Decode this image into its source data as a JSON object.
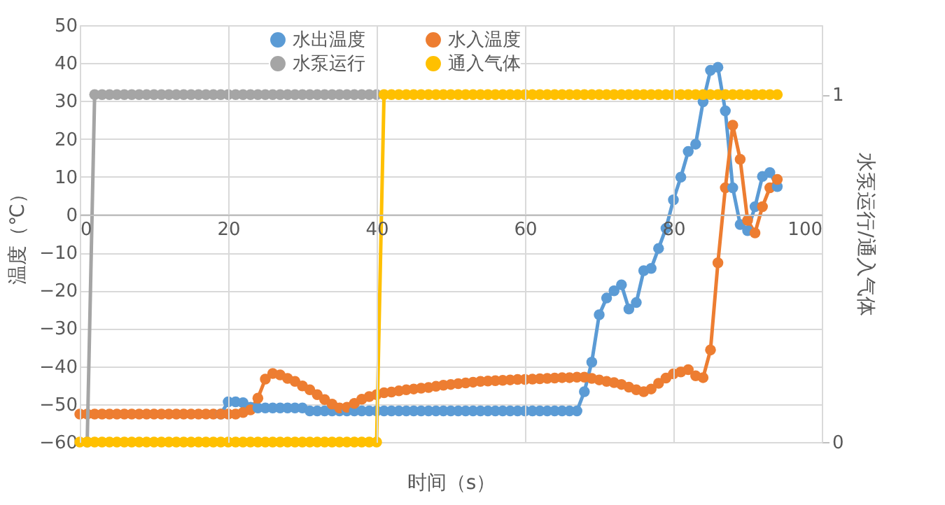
{
  "chart_data": {
    "type": "line",
    "xlabel": "时间（s）",
    "ylabel": "温度（℃）",
    "y2label": "水泵运行/通入气体",
    "x": [
      0,
      1,
      2,
      3,
      4,
      5,
      6,
      7,
      8,
      9,
      10,
      11,
      12,
      13,
      14,
      15,
      16,
      17,
      18,
      19,
      20,
      21,
      22,
      23,
      24,
      25,
      26,
      27,
      28,
      29,
      30,
      31,
      32,
      33,
      34,
      35,
      36,
      37,
      38,
      39,
      40,
      41,
      42,
      43,
      44,
      45,
      46,
      47,
      48,
      49,
      50,
      51,
      52,
      53,
      54,
      55,
      56,
      57,
      58,
      59,
      60,
      61,
      62,
      63,
      64,
      65,
      66,
      67,
      68,
      69,
      70,
      71,
      72,
      73,
      74,
      75,
      76,
      77,
      78,
      79,
      80,
      81,
      82,
      83,
      84,
      85,
      86,
      87,
      88,
      89,
      90,
      91,
      92,
      93,
      94
    ],
    "series": [
      {
        "name": "水出温度",
        "color": "#5b9bd5",
        "values": [
          null,
          null,
          null,
          null,
          null,
          null,
          null,
          null,
          null,
          null,
          null,
          null,
          null,
          null,
          null,
          null,
          null,
          null,
          null,
          -52.6,
          -49.4,
          -49.4,
          -49.6,
          -50.8,
          -51,
          -51,
          -51,
          -51,
          -51,
          -51,
          -51,
          -51.8,
          -51.8,
          -51.8,
          -51.8,
          -51.8,
          -51.8,
          -51.8,
          -51.8,
          -51.8,
          -51.8,
          -51.8,
          -51.8,
          -51.8,
          -51.8,
          -51.8,
          -51.8,
          -51.8,
          -51.8,
          -51.8,
          -51.8,
          -51.8,
          -51.8,
          -51.8,
          -51.8,
          -51.8,
          -51.8,
          -51.8,
          -51.8,
          -51.8,
          -51.8,
          -51.8,
          -51.8,
          -51.8,
          -51.8,
          -51.8,
          -51.8,
          -51.8,
          -46.7,
          -38.9,
          -26.4,
          -22,
          -20.1,
          -18.5,
          -24.9,
          -23.2,
          -14.8,
          -14.2,
          -8.9,
          -3.6,
          3.9,
          9.9,
          16.7,
          18.6,
          29.8,
          38.1,
          38.9,
          27.4,
          7.1,
          -2.6,
          -4.2,
          2.1,
          10.1,
          11.1,
          7.4
        ]
      },
      {
        "name": "水入温度",
        "color": "#ed7d31",
        "values": [
          -52.6,
          -52.6,
          -52.6,
          -52.6,
          -52.6,
          -52.6,
          -52.6,
          -52.6,
          -52.6,
          -52.6,
          -52.6,
          -52.6,
          -52.6,
          -52.6,
          -52.6,
          -52.6,
          -52.6,
          -52.6,
          -52.6,
          -52.6,
          -52.6,
          -52.6,
          -52.2,
          -51.5,
          -48.4,
          -43.4,
          -41.9,
          -42.3,
          -43.2,
          -44,
          -45.2,
          -46.2,
          -47.5,
          -48.8,
          -50,
          -51,
          -50.8,
          -49.8,
          -48.7,
          -48,
          -47.5,
          -47,
          -46.8,
          -46.5,
          -46.2,
          -46,
          -45.8,
          -45.6,
          -45.3,
          -45,
          -44.8,
          -44.6,
          -44.4,
          -44.2,
          -44,
          -43.9,
          -43.8,
          -43.7,
          -43.6,
          -43.5,
          -43.5,
          -43.4,
          -43.3,
          -43.2,
          -43.1,
          -43,
          -43,
          -42.9,
          -42.9,
          -43.2,
          -43.6,
          -44,
          -44.3,
          -44.8,
          -45.5,
          -46.2,
          -46.7,
          -46,
          -44.5,
          -43.1,
          -42,
          -41.5,
          -40.9,
          -42.5,
          -43,
          -35.7,
          -12.7,
          7.1,
          23.6,
          14.6,
          -1.5,
          -4.8,
          2.1,
          7.1,
          9.3
        ]
      },
      {
        "name": "水泵运行",
        "color": "#a5a5a5",
        "axis": "y2",
        "x": [
          1,
          2,
          3,
          4,
          5,
          6,
          7,
          8,
          9,
          10,
          11,
          12,
          13,
          14,
          15,
          16,
          17,
          18,
          19,
          20,
          21,
          22,
          23,
          24,
          25,
          26,
          27,
          28,
          29,
          30,
          31,
          32,
          33,
          34,
          35,
          36,
          37,
          38,
          39,
          40
        ],
        "values": [
          0,
          1,
          1,
          1,
          1,
          1,
          1,
          1,
          1,
          1,
          1,
          1,
          1,
          1,
          1,
          1,
          1,
          1,
          1,
          1,
          1,
          1,
          1,
          1,
          1,
          1,
          1,
          1,
          1,
          1,
          1,
          1,
          1,
          1,
          1,
          1,
          1,
          1,
          1,
          1
        ]
      },
      {
        "name": "通入气体",
        "color": "#ffc000",
        "axis": "y2",
        "values": [
          0,
          0,
          0,
          0,
          0,
          0,
          0,
          0,
          0,
          0,
          0,
          0,
          0,
          0,
          0,
          0,
          0,
          0,
          0,
          0,
          0,
          0,
          0,
          0,
          0,
          0,
          0,
          0,
          0,
          0,
          0,
          0,
          0,
          0,
          0,
          0,
          0,
          0,
          0,
          0,
          0,
          1,
          1,
          1,
          1,
          1,
          1,
          1,
          1,
          1,
          1,
          1,
          1,
          1,
          1,
          1,
          1,
          1,
          1,
          1,
          1,
          1,
          1,
          1,
          1,
          1,
          1,
          1,
          1,
          1,
          1,
          1,
          1,
          1,
          1,
          1,
          1,
          1,
          1,
          1,
          1,
          1,
          1,
          1,
          1,
          1,
          1,
          1,
          1,
          1,
          1,
          1,
          1,
          1,
          1
        ]
      }
    ],
    "xlim": [
      0,
      100
    ],
    "xticks": [
      0,
      20,
      40,
      60,
      80,
      100
    ],
    "ylim": [
      -60,
      50
    ],
    "yticks": [
      -60,
      -50,
      -40,
      -30,
      -20,
      -10,
      0,
      10,
      20,
      30,
      40,
      50
    ],
    "y2lim": [
      0,
      1.2
    ],
    "y2ticks": [
      0,
      1
    ],
    "grid": true,
    "legend": "top",
    "marker": "circle",
    "line_style": "solid"
  }
}
